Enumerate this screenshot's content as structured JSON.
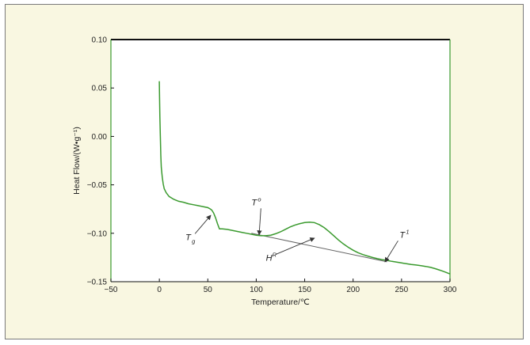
{
  "chart_data": {
    "type": "line",
    "xlabel": "Temperature/℃",
    "ylabel": "Heat Flow/(W•g⁻¹)",
    "xlim": [
      -50,
      300
    ],
    "ylim": [
      -0.15,
      0.1
    ],
    "x_ticks": [
      "−50",
      "0",
      "50",
      "100",
      "150",
      "200",
      "250",
      "300"
    ],
    "x_tick_values": [
      -50,
      0,
      50,
      100,
      150,
      200,
      250,
      300
    ],
    "y_ticks": [
      "0.10",
      "0.05",
      "0.00",
      "−0.05",
      "−0.10",
      "−0.15"
    ],
    "y_tick_values": [
      0.1,
      0.05,
      0.0,
      -0.05,
      -0.1,
      -0.15
    ],
    "line_color": "#3a9a2e",
    "baseline_color": "#666666",
    "series": [
      {
        "x": [
          0,
          0.2,
          0.5,
          1,
          1.5,
          2,
          3,
          4,
          5,
          7,
          10,
          15,
          20,
          25,
          30,
          35,
          40,
          45,
          50,
          52,
          54,
          56,
          58,
          60,
          62,
          65,
          70,
          75,
          80,
          85,
          90,
          95,
          100,
          105,
          110,
          115,
          120,
          125,
          130,
          135,
          140,
          145,
          150,
          155,
          160,
          165,
          170,
          175,
          180,
          185,
          190,
          195,
          200,
          205,
          210,
          215,
          220,
          225,
          230,
          235,
          240,
          245,
          250,
          255,
          260,
          265,
          270,
          275,
          280,
          285,
          290,
          295,
          300
        ],
        "y": [
          0.057,
          0.04,
          0.02,
          0.0,
          -0.02,
          -0.032,
          -0.042,
          -0.049,
          -0.054,
          -0.058,
          -0.062,
          -0.065,
          -0.067,
          -0.068,
          -0.0695,
          -0.0705,
          -0.0715,
          -0.0725,
          -0.0735,
          -0.0745,
          -0.076,
          -0.079,
          -0.084,
          -0.09,
          -0.0955,
          -0.0955,
          -0.096,
          -0.097,
          -0.098,
          -0.099,
          -0.1,
          -0.101,
          -0.102,
          -0.1025,
          -0.1025,
          -0.102,
          -0.1005,
          -0.0985,
          -0.096,
          -0.0935,
          -0.0915,
          -0.09,
          -0.089,
          -0.0885,
          -0.089,
          -0.091,
          -0.094,
          -0.098,
          -0.1025,
          -0.107,
          -0.111,
          -0.1145,
          -0.1175,
          -0.12,
          -0.122,
          -0.1235,
          -0.125,
          -0.1262,
          -0.1272,
          -0.128,
          -0.129,
          -0.1298,
          -0.1306,
          -0.1314,
          -0.1322,
          -0.1328,
          -0.1334,
          -0.1342,
          -0.1352,
          -0.1366,
          -0.1382,
          -0.14,
          -0.142
        ]
      }
    ],
    "baseline": {
      "x": [
        95,
        235
      ],
      "y": [
        -0.1,
        -0.1295
      ]
    },
    "annotations": [
      {
        "label": "T",
        "sup": "",
        "sub": "g",
        "text_x": 27,
        "text_y": -0.107,
        "arrow_to": [
          53,
          -0.0815
        ]
      },
      {
        "label": "T",
        "sup": "o",
        "sub": "",
        "text_x": 95,
        "text_y": -0.071,
        "arrow_to": [
          103,
          -0.1015
        ]
      },
      {
        "label": "H",
        "sup": "R",
        "sub": "",
        "text_x": 110,
        "text_y": -0.1285,
        "arrow_to": [
          160,
          -0.105
        ]
      },
      {
        "label": "T",
        "sup": "1",
        "sub": "",
        "text_x": 248,
        "text_y": -0.1045,
        "arrow_to": [
          233,
          -0.1295
        ]
      }
    ]
  }
}
